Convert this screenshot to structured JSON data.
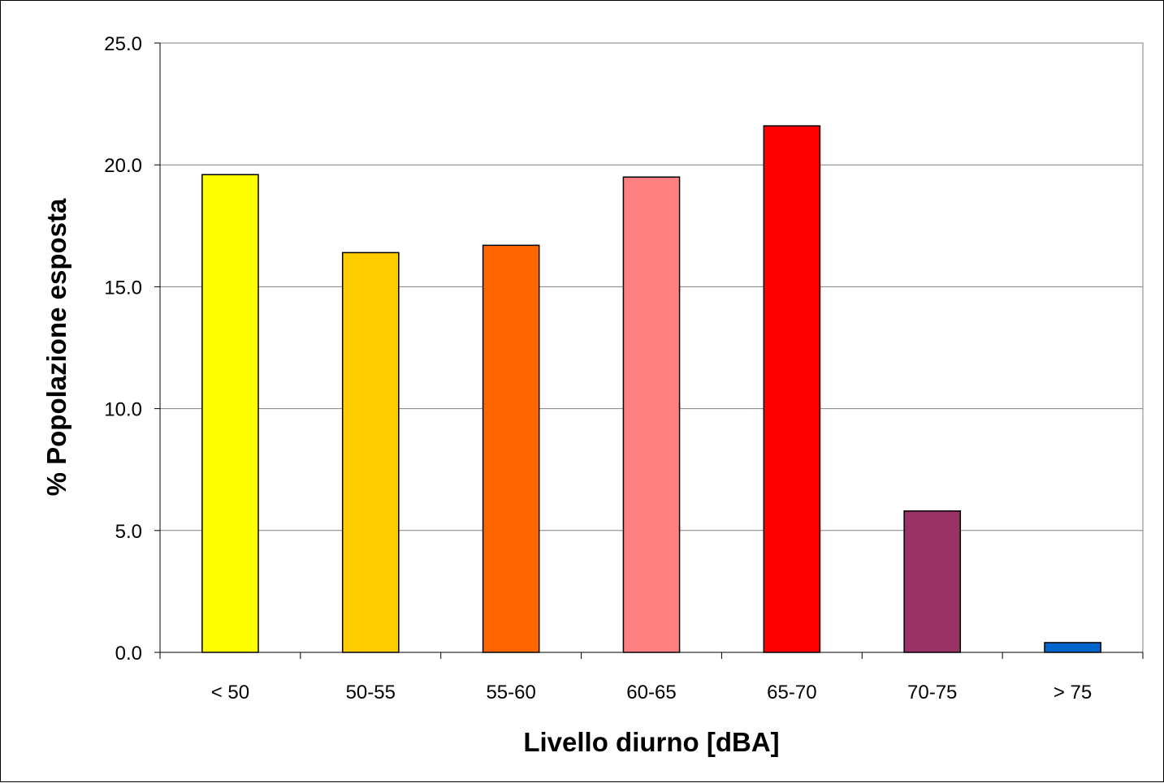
{
  "chart_data": {
    "type": "bar",
    "title": "",
    "xlabel": "Livello diurno [dBA]",
    "ylabel": "% Popolazione esposta",
    "categories": [
      "< 50",
      "50-55",
      "55-60",
      "60-65",
      "65-70",
      "70-75",
      "> 75"
    ],
    "values": [
      19.6,
      16.4,
      16.7,
      19.5,
      21.6,
      5.8,
      0.4
    ],
    "bar_colors": [
      "#ffff00",
      "#ffcc00",
      "#ff6600",
      "#ff8080",
      "#ff0000",
      "#993366",
      "#0066cc"
    ],
    "ylim": [
      0,
      25
    ],
    "yticks": [
      "0.0",
      "5.0",
      "10.0",
      "15.0",
      "20.0",
      "25.0"
    ],
    "grid": true,
    "legend": "none"
  }
}
